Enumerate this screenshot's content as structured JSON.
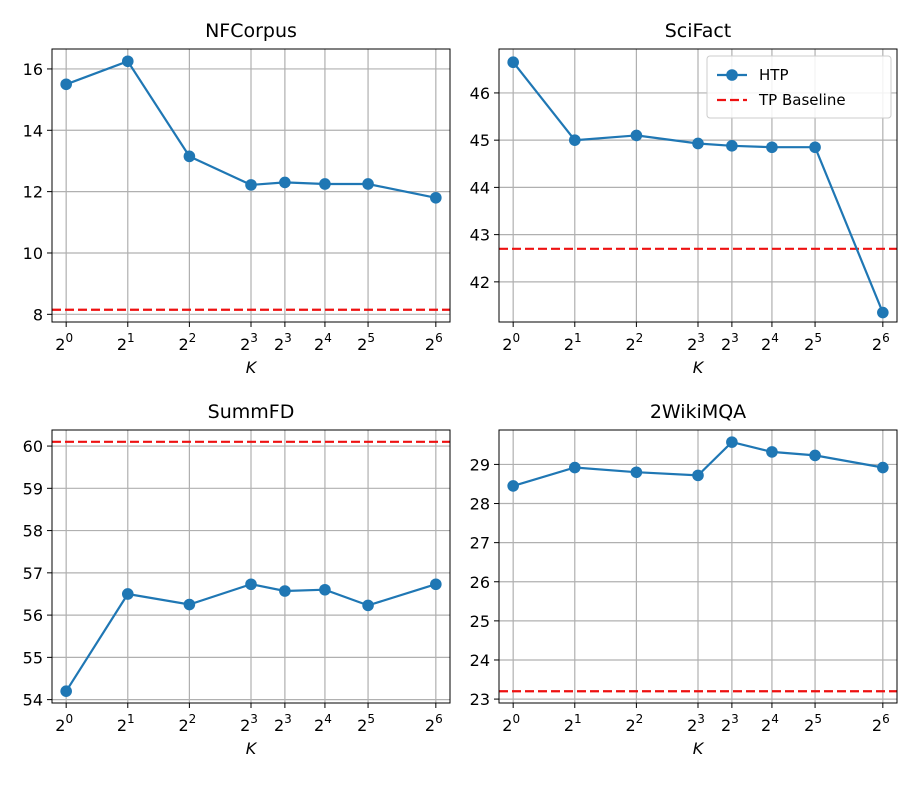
{
  "colors": {
    "series": "#1f77b4",
    "baseline": "#ee1111",
    "grid": "#b0b0b0"
  },
  "legend": {
    "location": "upper right",
    "panel_index": 1,
    "entries": [
      "HTP",
      "TP Baseline"
    ]
  },
  "chart_data": [
    {
      "type": "line",
      "title": "NFCorpus",
      "xlabel": "K",
      "x_tick_labels": [
        {
          "base": "2",
          "exp": "0"
        },
        {
          "base": "2",
          "exp": "1"
        },
        {
          "base": "2",
          "exp": "2"
        },
        {
          "base": "2",
          "exp": "3"
        },
        {
          "base": "2",
          "exp": "3"
        },
        {
          "base": "2",
          "exp": "4"
        },
        {
          "base": "2",
          "exp": "5"
        },
        {
          "base": "2",
          "exp": "6"
        }
      ],
      "x": [
        0,
        1,
        2,
        3,
        3.55,
        4.2,
        4.9,
        6
      ],
      "y_ticks": [
        "8",
        "10",
        "12",
        "14",
        "16"
      ],
      "y_tick_values": [
        8,
        10,
        12,
        14,
        16
      ],
      "xlim": [
        -0.23,
        6.23
      ],
      "ylim": [
        7.75,
        16.65
      ],
      "series": [
        {
          "name": "HTP",
          "values": [
            15.5,
            16.25,
            13.15,
            12.22,
            12.3,
            12.25,
            12.25,
            11.8
          ]
        }
      ],
      "baseline": {
        "name": "TP Baseline",
        "value": 8.15
      }
    },
    {
      "type": "line",
      "title": "SciFact",
      "xlabel": "K",
      "x_tick_labels": [
        {
          "base": "2",
          "exp": "0"
        },
        {
          "base": "2",
          "exp": "1"
        },
        {
          "base": "2",
          "exp": "2"
        },
        {
          "base": "2",
          "exp": "3"
        },
        {
          "base": "2",
          "exp": "3"
        },
        {
          "base": "2",
          "exp": "4"
        },
        {
          "base": "2",
          "exp": "5"
        },
        {
          "base": "2",
          "exp": "6"
        }
      ],
      "x": [
        0,
        1,
        2,
        3,
        3.55,
        4.2,
        4.9,
        6
      ],
      "y_ticks": [
        "42",
        "43",
        "44",
        "45",
        "46"
      ],
      "y_tick_values": [
        42,
        43,
        44,
        45,
        46
      ],
      "xlim": [
        -0.23,
        6.23
      ],
      "ylim": [
        41.15,
        46.93
      ],
      "series": [
        {
          "name": "HTP",
          "values": [
            46.65,
            45.0,
            45.1,
            44.93,
            44.88,
            44.85,
            44.85,
            41.35
          ]
        }
      ],
      "baseline": {
        "name": "TP Baseline",
        "value": 42.7
      }
    },
    {
      "type": "line",
      "title": "SummFD",
      "xlabel": "K",
      "x_tick_labels": [
        {
          "base": "2",
          "exp": "0"
        },
        {
          "base": "2",
          "exp": "1"
        },
        {
          "base": "2",
          "exp": "2"
        },
        {
          "base": "2",
          "exp": "3"
        },
        {
          "base": "2",
          "exp": "3"
        },
        {
          "base": "2",
          "exp": "4"
        },
        {
          "base": "2",
          "exp": "5"
        },
        {
          "base": "2",
          "exp": "6"
        }
      ],
      "x": [
        0,
        1,
        2,
        3,
        3.55,
        4.2,
        4.9,
        6
      ],
      "y_ticks": [
        "54",
        "55",
        "56",
        "57",
        "58",
        "59",
        "60"
      ],
      "y_tick_values": [
        54,
        55,
        56,
        57,
        58,
        59,
        60
      ],
      "xlim": [
        -0.23,
        6.23
      ],
      "ylim": [
        53.92,
        60.38
      ],
      "series": [
        {
          "name": "HTP",
          "values": [
            54.2,
            56.5,
            56.25,
            56.73,
            56.57,
            56.6,
            56.23,
            56.73
          ]
        }
      ],
      "baseline": {
        "name": "TP Baseline",
        "value": 60.1
      }
    },
    {
      "type": "line",
      "title": "2WikiMQA",
      "xlabel": "K",
      "x_tick_labels": [
        {
          "base": "2",
          "exp": "0"
        },
        {
          "base": "2",
          "exp": "1"
        },
        {
          "base": "2",
          "exp": "2"
        },
        {
          "base": "2",
          "exp": "3"
        },
        {
          "base": "2",
          "exp": "3"
        },
        {
          "base": "2",
          "exp": "4"
        },
        {
          "base": "2",
          "exp": "5"
        },
        {
          "base": "2",
          "exp": "6"
        }
      ],
      "x": [
        0,
        1,
        2,
        3,
        3.55,
        4.2,
        4.9,
        6
      ],
      "y_ticks": [
        "23",
        "24",
        "25",
        "26",
        "27",
        "28",
        "29"
      ],
      "y_tick_values": [
        23,
        24,
        25,
        26,
        27,
        28,
        29
      ],
      "xlim": [
        -0.23,
        6.23
      ],
      "ylim": [
        22.9,
        29.88
      ],
      "series": [
        {
          "name": "HTP",
          "values": [
            28.45,
            28.92,
            28.8,
            28.72,
            29.57,
            29.32,
            29.23,
            28.92
          ]
        }
      ],
      "baseline": {
        "name": "TP Baseline",
        "value": 23.2
      }
    }
  ]
}
